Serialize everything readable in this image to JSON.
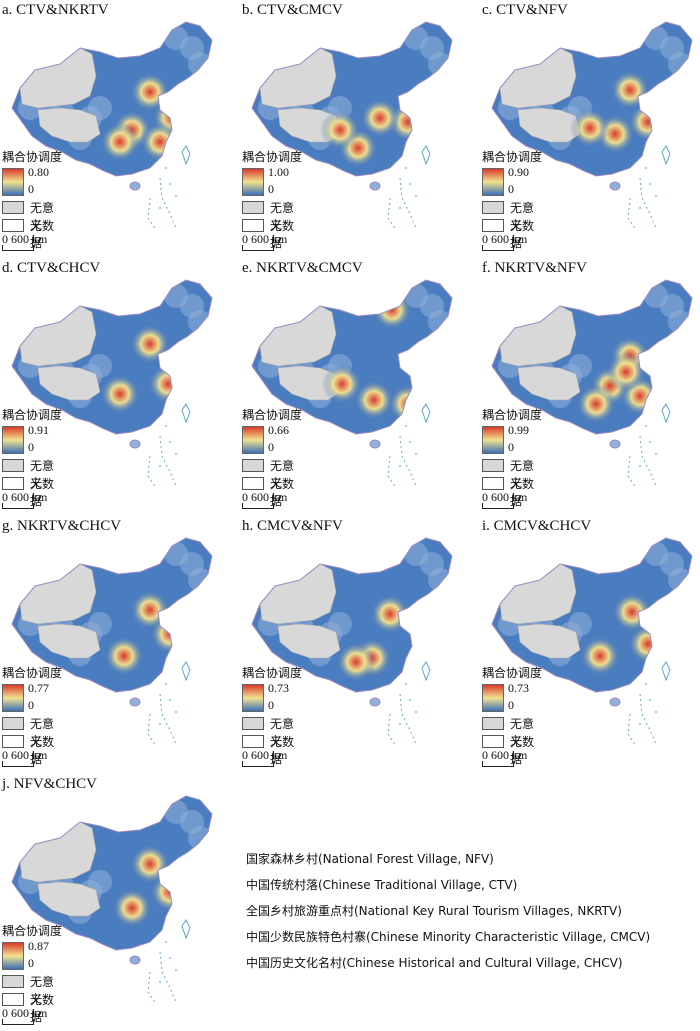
{
  "legend": {
    "title": "耦合协调度",
    "meaningless_label": "无意义",
    "no_data_label": "无数据",
    "min_label": "0",
    "scale_text": "0   600 km",
    "colors": {
      "high": "#d93a2b",
      "mid": "#f3e28f",
      "low": "#3b6fb6",
      "gray": "#d8d8d8",
      "white": "#ffffff"
    }
  },
  "panels": [
    {
      "title": "a. CTV&NKRTV",
      "max_label": "0.80"
    },
    {
      "title": "b. CTV&CMCV",
      "max_label": "1.00"
    },
    {
      "title": "c. CTV&NFV",
      "max_label": "0.90"
    },
    {
      "title": "d. CTV&CHCV",
      "max_label": "0.91"
    },
    {
      "title": "e. NKRTV&CMCV",
      "max_label": "0.66"
    },
    {
      "title": "f. NKRTV&NFV",
      "max_label": "0.99"
    },
    {
      "title": "g. NKRTV&CHCV",
      "max_label": "0.77"
    },
    {
      "title": "h. CMCV&NFV",
      "max_label": "0.73"
    },
    {
      "title": "i. CMCV&CHCV",
      "max_label": "0.73"
    },
    {
      "title": "j. NFV&CHCV",
      "max_label": "0.87"
    }
  ],
  "notes": [
    "国家森林乡村(National Forest Village, NFV)",
    "中国传统村落(Chinese Traditional Village, CTV)",
    "全国乡村旅游重点村(National Key Rural Tourism Villages, NKRTV)",
    "中国少数民族特色村寨(Chinese Minority Characteristic Village, CMCV)",
    "中国历史文化名村(Chinese Historical and Cultural Village, CHCV)"
  ]
}
